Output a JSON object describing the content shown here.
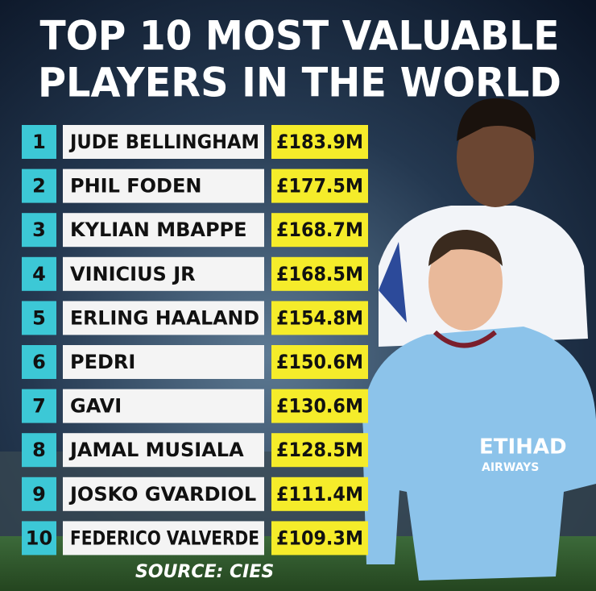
{
  "title": {
    "lines": [
      "TOP 10 MOST VALUABLE",
      "PLAYERS IN THE WORLD"
    ]
  },
  "table": {
    "rows": [
      [
        "1",
        "JUDE BELLINGHAM",
        "£183.9M"
      ],
      [
        "2",
        "PHIL FODEN",
        "£177.5M"
      ],
      [
        "3",
        "KYLIAN MBAPPE",
        "£168.7M"
      ],
      [
        "4",
        "VINICIUS JR",
        "£168.5M"
      ],
      [
        "5",
        "ERLING HAALAND",
        "£154.8M"
      ],
      [
        "6",
        "PEDRI",
        "£150.6M"
      ],
      [
        "7",
        "GAVI",
        "£130.6M"
      ],
      [
        "8",
        "JAMAL MUSIALA",
        "£128.5M"
      ],
      [
        "9",
        "JOSKO GVARDIOL",
        "£111.4M"
      ],
      [
        "10",
        "FEDERICO VALVERDE",
        "£109.3M"
      ]
    ]
  },
  "source": "SOURCE: CIES"
}
